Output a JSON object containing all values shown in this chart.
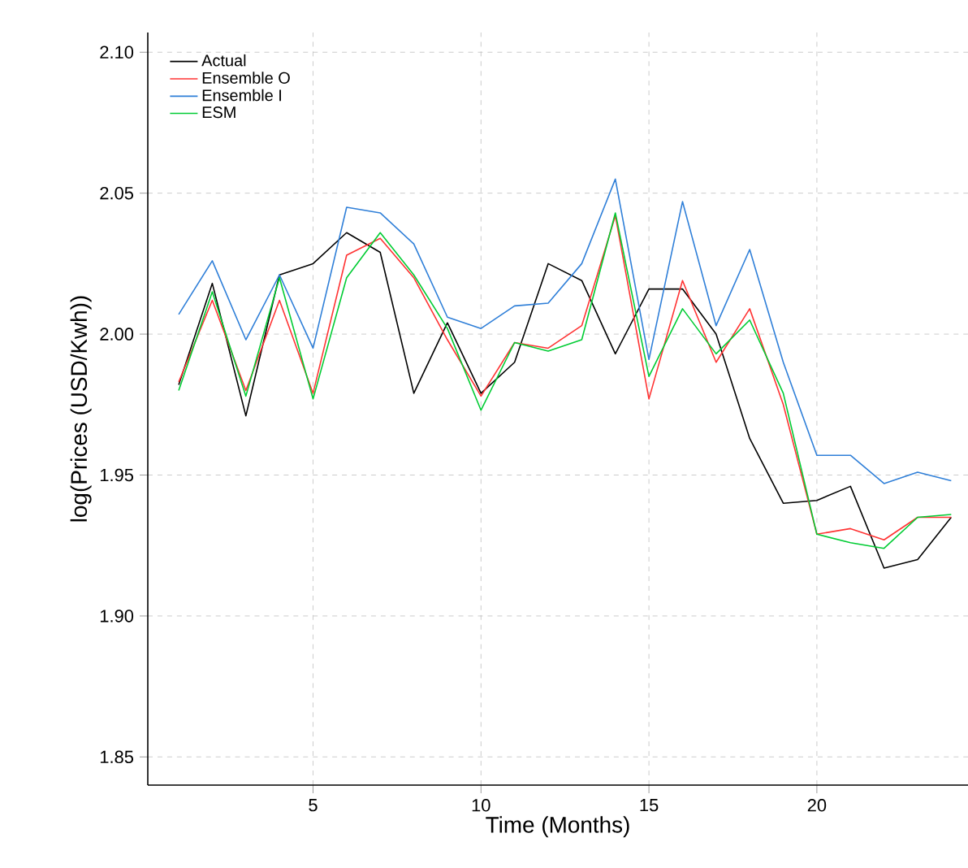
{
  "chart_data": {
    "type": "line",
    "xlabel": "Time (Months)",
    "ylabel": "log(Prices (USD/Kwh))",
    "x": [
      1,
      2,
      3,
      4,
      5,
      6,
      7,
      8,
      9,
      10,
      11,
      12,
      13,
      14,
      15,
      16,
      17,
      18,
      19,
      20,
      21,
      22,
      23,
      24
    ],
    "series": [
      {
        "name": "Actual",
        "color": "#000000",
        "values": [
          1.982,
          2.018,
          1.971,
          2.021,
          2.025,
          2.036,
          2.029,
          1.979,
          2.004,
          1.979,
          1.99,
          2.025,
          2.019,
          1.993,
          2.016,
          2.016,
          2.0,
          1.963,
          1.94,
          1.941,
          1.946,
          1.917,
          1.92,
          1.935
        ]
      },
      {
        "name": "Ensemble O",
        "color": "#ff3333",
        "values": [
          1.983,
          2.012,
          1.98,
          2.012,
          1.979,
          2.028,
          2.034,
          2.02,
          1.998,
          1.978,
          1.997,
          1.995,
          2.003,
          2.042,
          1.977,
          2.019,
          1.99,
          2.009,
          1.975,
          1.929,
          1.931,
          1.927,
          1.935,
          1.935
        ]
      },
      {
        "name": "Ensemble I",
        "color": "#2f7fd8",
        "values": [
          2.007,
          2.026,
          1.998,
          2.021,
          1.995,
          2.045,
          2.043,
          2.032,
          2.006,
          2.002,
          2.01,
          2.011,
          2.025,
          2.055,
          1.991,
          2.047,
          2.003,
          2.03,
          1.99,
          1.957,
          1.957,
          1.947,
          1.951,
          1.948
        ]
      },
      {
        "name": "ESM",
        "color": "#00cc33",
        "values": [
          1.98,
          2.015,
          1.978,
          2.02,
          1.977,
          2.02,
          2.036,
          2.021,
          2.002,
          1.973,
          1.997,
          1.994,
          1.998,
          2.043,
          1.985,
          2.009,
          1.993,
          2.005,
          1.979,
          1.929,
          1.926,
          1.924,
          1.935,
          1.936
        ]
      }
    ],
    "xlim": [
      0.08,
      24.5
    ],
    "ylim": [
      1.84,
      2.107
    ],
    "xticks": [
      5,
      10,
      15,
      20
    ],
    "yticks": [
      1.85,
      {
        "value": 1.9,
        "label": "1.90"
      },
      1.95,
      {
        "value": 2.0,
        "label": "2.00"
      },
      2.05,
      {
        "value": 2.1,
        "label": "2.10"
      }
    ],
    "grid": true,
    "legend": "top left",
    "marker": "none",
    "line_style": "solid"
  }
}
